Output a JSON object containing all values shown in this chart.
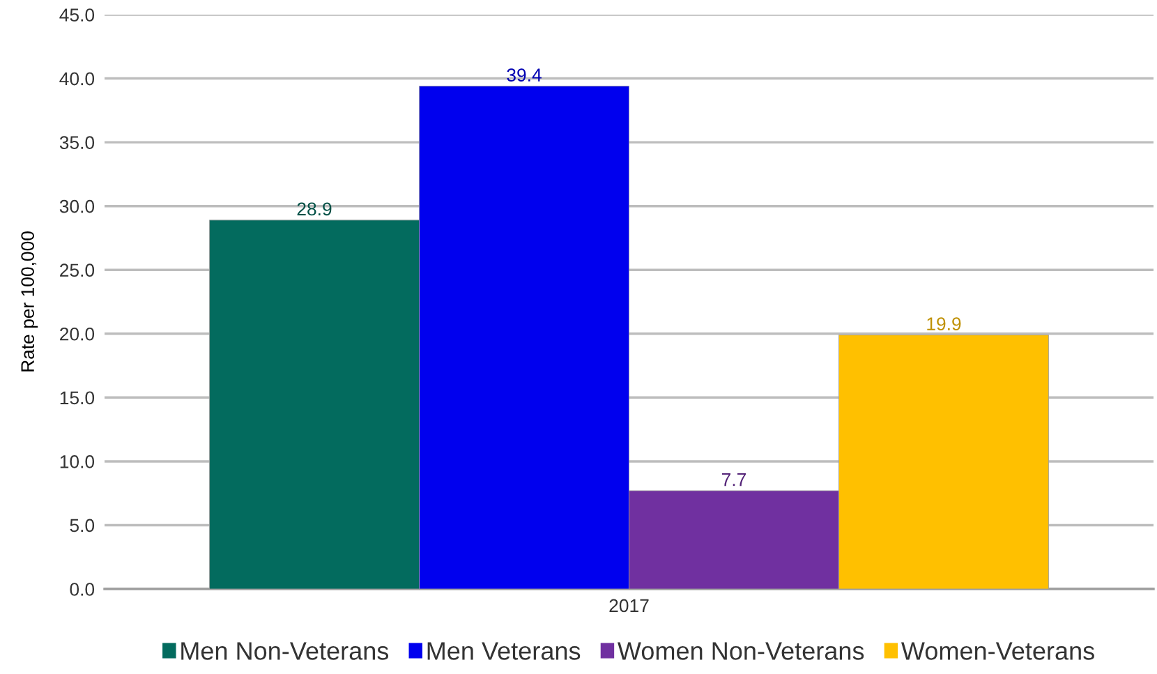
{
  "chart_data": {
    "type": "bar",
    "ylabel": "Rate per 100,000",
    "categories": [
      "2017"
    ],
    "series": [
      {
        "name": "Men Non-Veterans",
        "color": "#036b5e",
        "values": [
          28.9
        ]
      },
      {
        "name": "Men Veterans",
        "color": "#0000ee",
        "values": [
          39.4
        ]
      },
      {
        "name": "Women Non-Veterans",
        "color": "#7030a0",
        "values": [
          7.7
        ]
      },
      {
        "name": "Women-Veterans",
        "color": "#ffc000",
        "values": [
          19.9
        ]
      }
    ],
    "ylim": [
      0,
      45
    ],
    "yticks": [
      {
        "value": 0,
        "label": "0.0"
      },
      {
        "value": 5,
        "label": "5.0"
      },
      {
        "value": 10,
        "label": "10.0"
      },
      {
        "value": 15,
        "label": "15.0"
      },
      {
        "value": 20,
        "label": "20.0"
      },
      {
        "value": 25,
        "label": "25.0"
      },
      {
        "value": 30,
        "label": "30.0"
      },
      {
        "value": 35,
        "label": "35.0"
      },
      {
        "value": 40,
        "label": "40.0"
      },
      {
        "value": 45,
        "label": "45.0"
      }
    ],
    "grid": "y",
    "legend": "bottom",
    "data_labels": true
  }
}
